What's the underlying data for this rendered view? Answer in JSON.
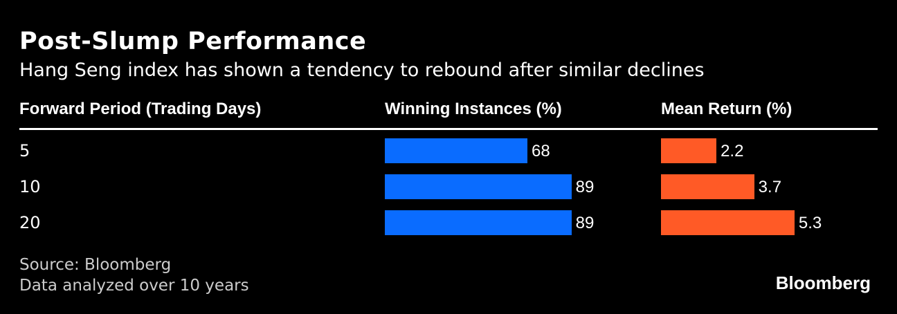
{
  "header": {
    "title": "Post-Slump Performance",
    "subtitle": "Hang Seng index has shown a tendency to rebound after similar declines"
  },
  "columns": {
    "period": "Forward Period (Trading Days)",
    "winning": "Winning Instances (%)",
    "mean": "Mean Return (%)"
  },
  "colors": {
    "winning": "#0a6cff",
    "mean": "#ff5a26",
    "background": "#000000"
  },
  "chart_data": {
    "type": "bar",
    "categories": [
      "5",
      "10",
      "20"
    ],
    "series": [
      {
        "name": "Winning Instances (%)",
        "values": [
          68,
          89,
          89
        ]
      },
      {
        "name": "Mean Return (%)",
        "values": [
          2.2,
          3.7,
          5.3
        ]
      }
    ]
  },
  "footer": {
    "source": "Source: Bloomberg",
    "note": "Data analyzed over 10 years",
    "brand": "Bloomberg"
  }
}
